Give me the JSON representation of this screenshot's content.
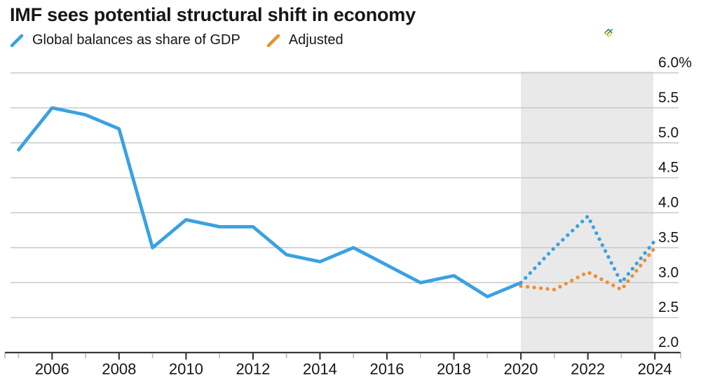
{
  "header": {
    "title": "IMF sees potential structural shift in economy"
  },
  "legend": {
    "items": [
      {
        "label": "Global balances as share of GDP",
        "color": "#3aa1e3",
        "style": "solid"
      },
      {
        "label": "Adjusted",
        "color": "#ee8f35",
        "style": "dotted"
      }
    ]
  },
  "logo": {
    "name": "litefinance-logo",
    "colors": {
      "green": "#3e9142",
      "blue": "#3c83da",
      "yellow": "#f2c236"
    }
  },
  "colors": {
    "background": "#ffffff",
    "text": "#161616",
    "gridline": "#c9c9c9",
    "axis": "#3a3a3a",
    "major_tick": "#3a3a3a",
    "minor_tick": "#b9b9b9",
    "forecast_band": "#e9e9e9",
    "blue_series": "#3aa1e3",
    "orange_series": "#ee8f35"
  },
  "chart_data": {
    "type": "line",
    "title": "IMF sees potential structural shift in economy",
    "xlabel": "",
    "ylabel": "",
    "ylim": [
      2.0,
      6.0
    ],
    "grid": true,
    "legend_position": "top-left",
    "y_axis": {
      "side": "right",
      "ticks": [
        {
          "value": 6.0,
          "label": "6.0%"
        },
        {
          "value": 5.5,
          "label": "5.5"
        },
        {
          "value": 5.0,
          "label": "5.0"
        },
        {
          "value": 4.5,
          "label": "4.5"
        },
        {
          "value": 4.0,
          "label": "4.0"
        },
        {
          "value": 3.5,
          "label": "3.5"
        },
        {
          "value": 3.0,
          "label": "3.0"
        },
        {
          "value": 2.5,
          "label": "2.5"
        },
        {
          "value": 2.0,
          "label": "2.0"
        }
      ]
    },
    "x_axis": {
      "major_ticks": [
        2006,
        2008,
        2010,
        2012,
        2014,
        2016,
        2018,
        2020,
        2022,
        2024
      ],
      "minor_ticks": [
        2005,
        2007,
        2009,
        2011,
        2013,
        2015,
        2017,
        2019,
        2021,
        2023
      ]
    },
    "forecast_band": {
      "from": 2020,
      "to": 2024
    },
    "series": [
      {
        "name": "Global balances as share of GDP",
        "color": "#3aa1e3",
        "style": "solid",
        "x": [
          2005,
          2006,
          2007,
          2008,
          2009,
          2010,
          2011,
          2012,
          2013,
          2014,
          2015,
          2016,
          2017,
          2018,
          2019,
          2020
        ],
        "values": [
          4.9,
          5.5,
          5.4,
          5.2,
          3.5,
          3.9,
          3.8,
          3.8,
          3.4,
          3.3,
          3.5,
          3.25,
          3.0,
          3.1,
          2.8,
          3.0
        ]
      },
      {
        "name": "Global balances as share of GDP (forecast)",
        "color": "#3aa1e3",
        "style": "dotted",
        "x": [
          2020,
          2021,
          2022,
          2023,
          2024
        ],
        "values": [
          3.0,
          3.5,
          3.95,
          3.0,
          3.6
        ]
      },
      {
        "name": "Adjusted (forecast)",
        "color": "#ee8f35",
        "style": "dotted",
        "x": [
          2020,
          2021,
          2022,
          2023,
          2024
        ],
        "values": [
          2.95,
          2.9,
          3.15,
          2.9,
          3.5
        ]
      }
    ]
  }
}
